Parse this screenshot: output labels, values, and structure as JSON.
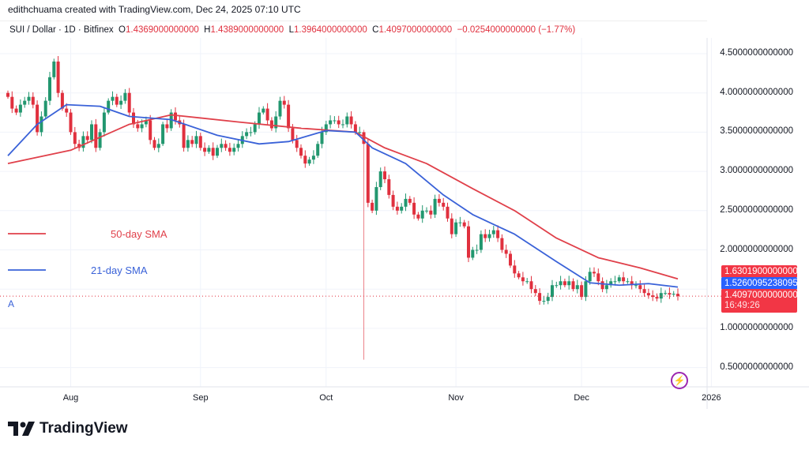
{
  "header": {
    "credit": "edithchuama created with TradingView.com, Dec 24, 2025 07:10 UTC"
  },
  "legend": {
    "symbol": "SUI / Dollar · 1D · Bitfinex",
    "o_label": "O",
    "o": "1.4369000000000",
    "h_label": "H",
    "h": "1.4389000000000",
    "l_label": "L",
    "l": "1.3964000000000",
    "c_label": "C",
    "c": "1.4097000000000",
    "change": "−0.0254000000000 (−1.77%)"
  },
  "annotations": {
    "sma50": "50-day SMA",
    "sma21": "21-day SMA",
    "marker": "A"
  },
  "price_tags": {
    "sma50": "1.6301900000000",
    "sma21": "1.5260095238095",
    "last": "1.4097000000000",
    "countdown": "16:49:26"
  },
  "brand": {
    "name": "TradingView"
  },
  "colors": {
    "up": "#22976f",
    "down": "#e0303e",
    "sma50": "#e0404a",
    "sma21": "#3a62d8",
    "tag_red": "#f23645",
    "tag_blue": "#2962ff"
  },
  "icons": {
    "logo": "tradingview-logo",
    "lightning": "lightning-icon"
  },
  "chart_data": {
    "type": "candlestick",
    "title": "SUI / Dollar · 1D · Bitfinex",
    "start_date": "2025-07-17",
    "end_date": "2025-12-24",
    "closes": [
      3.95,
      3.8,
      3.75,
      3.85,
      3.9,
      3.95,
      3.85,
      3.5,
      3.7,
      3.9,
      4.2,
      4.4,
      4.0,
      3.8,
      3.75,
      3.5,
      3.35,
      3.3,
      3.45,
      3.4,
      3.6,
      3.3,
      3.5,
      3.75,
      3.9,
      3.95,
      3.85,
      3.9,
      4.0,
      3.75,
      3.6,
      3.55,
      3.6,
      3.65,
      3.4,
      3.3,
      3.35,
      3.6,
      3.55,
      3.75,
      3.65,
      3.6,
      3.3,
      3.4,
      3.35,
      3.45,
      3.3,
      3.25,
      3.3,
      3.2,
      3.3,
      3.35,
      3.3,
      3.25,
      3.3,
      3.35,
      3.45,
      3.5,
      3.5,
      3.6,
      3.75,
      3.8,
      3.65,
      3.55,
      3.7,
      3.9,
      3.85,
      3.55,
      3.4,
      3.3,
      3.2,
      3.1,
      3.15,
      3.2,
      3.35,
      3.5,
      3.6,
      3.65,
      3.65,
      3.6,
      3.6,
      3.7,
      3.6,
      3.5,
      3.5,
      3.35,
      2.6,
      2.5,
      2.8,
      3.0,
      2.9,
      2.7,
      2.55,
      2.5,
      2.55,
      2.65,
      2.6,
      2.45,
      2.4,
      2.5,
      2.5,
      2.45,
      2.65,
      2.6,
      2.55,
      2.4,
      2.2,
      2.35,
      2.35,
      2.3,
      1.9,
      2.0,
      2.0,
      2.2,
      2.15,
      2.2,
      2.25,
      2.15,
      2.0,
      1.95,
      1.8,
      1.7,
      1.65,
      1.6,
      1.6,
      1.5,
      1.45,
      1.35,
      1.35,
      1.4,
      1.55,
      1.55,
      1.6,
      1.55,
      1.6,
      1.5,
      1.55,
      1.4,
      1.6,
      1.72,
      1.7,
      1.6,
      1.5,
      1.55,
      1.6,
      1.6,
      1.65,
      1.6,
      1.6,
      1.55,
      1.55,
      1.5,
      1.45,
      1.42,
      1.4,
      1.38,
      1.45,
      1.45,
      1.43,
      1.44,
      1.4097
    ],
    "notable_low": {
      "date": "2025-10-10",
      "low": 0.6
    },
    "sma50": [
      [
        "2025-07-17",
        3.1
      ],
      [
        "2025-08-01",
        3.27
      ],
      [
        "2025-08-15",
        3.6
      ],
      [
        "2025-08-25",
        3.72
      ],
      [
        "2025-09-10",
        3.63
      ],
      [
        "2025-09-25",
        3.55
      ],
      [
        "2025-10-08",
        3.5
      ],
      [
        "2025-10-15",
        3.3
      ],
      [
        "2025-10-25",
        3.1
      ],
      [
        "2025-11-05",
        2.78
      ],
      [
        "2025-11-15",
        2.5
      ],
      [
        "2025-11-25",
        2.15
      ],
      [
        "2025-12-05",
        1.9
      ],
      [
        "2025-12-15",
        1.77
      ],
      [
        "2025-12-24",
        1.63019
      ]
    ],
    "sma21": [
      [
        "2025-07-17",
        3.2
      ],
      [
        "2025-07-24",
        3.6
      ],
      [
        "2025-07-31",
        3.85
      ],
      [
        "2025-08-08",
        3.83
      ],
      [
        "2025-08-15",
        3.7
      ],
      [
        "2025-08-25",
        3.66
      ],
      [
        "2025-09-05",
        3.46
      ],
      [
        "2025-09-15",
        3.35
      ],
      [
        "2025-09-22",
        3.38
      ],
      [
        "2025-10-01",
        3.52
      ],
      [
        "2025-10-08",
        3.5
      ],
      [
        "2025-10-12",
        3.3
      ],
      [
        "2025-10-20",
        3.1
      ],
      [
        "2025-10-29",
        2.7
      ],
      [
        "2025-11-05",
        2.45
      ],
      [
        "2025-11-15",
        2.2
      ],
      [
        "2025-11-25",
        1.85
      ],
      [
        "2025-12-03",
        1.58
      ],
      [
        "2025-12-10",
        1.55
      ],
      [
        "2025-12-17",
        1.57
      ],
      [
        "2025-12-24",
        1.5260095
      ]
    ],
    "y_ticks": [
      "4.5000000000000",
      "4.0000000000000",
      "3.5000000000000",
      "3.0000000000000",
      "2.5000000000000",
      "2.0000000000000",
      "1.0000000000000",
      "0.5000000000000"
    ],
    "y_tick_values": [
      4.5,
      4.0,
      3.5,
      3.0,
      2.5,
      2.0,
      1.0,
      0.5
    ],
    "x_ticks": [
      {
        "label": "Aug",
        "date": "2025-08-01"
      },
      {
        "label": "Sep",
        "date": "2025-09-01"
      },
      {
        "label": "Oct",
        "date": "2025-10-01"
      },
      {
        "label": "Nov",
        "date": "2025-11-01"
      },
      {
        "label": "Dec",
        "date": "2025-12-01"
      },
      {
        "label": "2026",
        "date": "2026-01-01"
      }
    ],
    "ylim": [
      0.35,
      4.75
    ],
    "grid": true
  }
}
